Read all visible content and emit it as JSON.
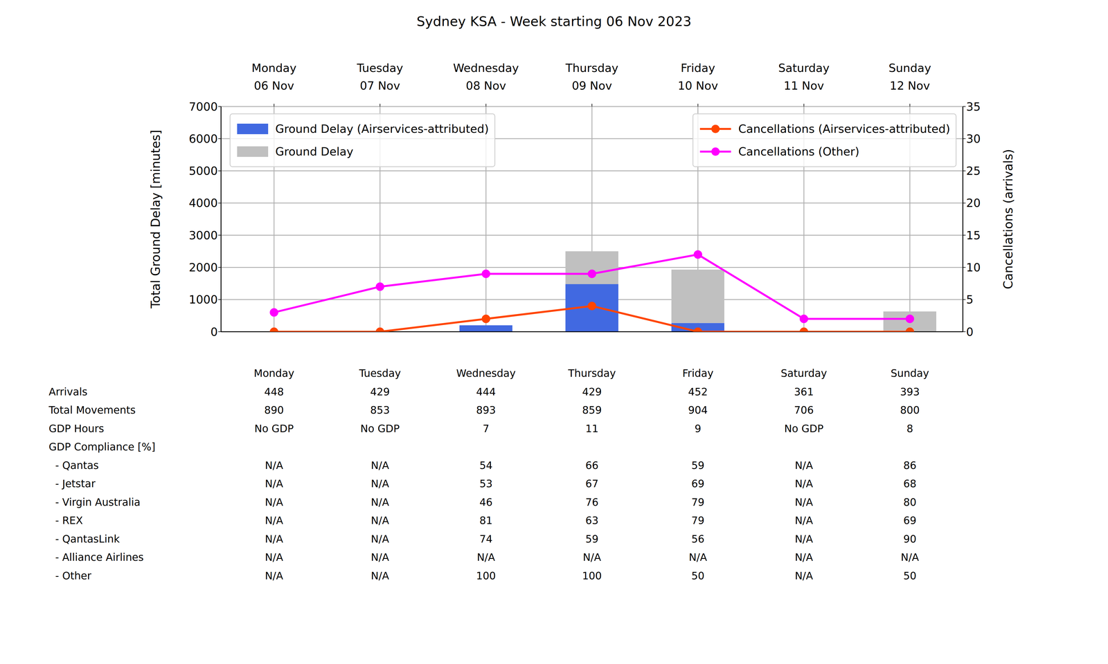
{
  "chart_data": {
    "type": "bar",
    "title": "Sydney KSA - Week starting 06 Nov 2023",
    "categories": [
      "Monday\n06 Nov",
      "Tuesday\n07 Nov",
      "Wednesday\n08 Nov",
      "Thursday\n09 Nov",
      "Friday\n10 Nov",
      "Saturday\n11 Nov",
      "Sunday\n12 Nov"
    ],
    "y_label": "Total Ground Delay [minutes]",
    "y2_label": "Cancellations (arrivals)",
    "ylim": [
      0,
      7000
    ],
    "yticks": [
      0,
      1000,
      2000,
      3000,
      4000,
      5000,
      6000,
      7000
    ],
    "y2lim": [
      0,
      35
    ],
    "y2ticks": [
      0,
      5,
      10,
      15,
      20,
      25,
      30,
      35
    ],
    "grid": true,
    "stacked": true,
    "series": [
      {
        "name": "Ground Delay (Airservices-attributed)",
        "type": "bar",
        "color": "#4169e1",
        "legend": "upper left",
        "values": [
          0,
          0,
          200,
          1480,
          270,
          0,
          0
        ]
      },
      {
        "name": "Ground Delay",
        "type": "bar",
        "color": "#c0c0c0",
        "legend": "upper left",
        "values": [
          0,
          0,
          0,
          1020,
          1660,
          0,
          630
        ]
      },
      {
        "name": "Cancellations (Airservices-attributed)",
        "type": "line",
        "axis": "y2",
        "color": "#ff4500",
        "marker": "circle",
        "line_style": "solid",
        "legend": "upper right",
        "values": [
          0,
          0,
          2,
          4,
          0,
          0,
          0
        ]
      },
      {
        "name": "Cancellations (Other)",
        "type": "line",
        "axis": "y2",
        "color": "#ff00ff",
        "marker": "circle",
        "line_style": "solid",
        "legend": "upper right",
        "values": [
          3,
          7,
          9,
          9,
          12,
          2,
          2
        ]
      }
    ]
  },
  "table": {
    "columns": [
      "Monday",
      "Tuesday",
      "Wednesday",
      "Thursday",
      "Friday",
      "Saturday",
      "Sunday"
    ],
    "rows": [
      {
        "label": "Arrivals",
        "values": [
          448,
          429,
          444,
          429,
          452,
          361,
          393
        ]
      },
      {
        "label": "Total Movements",
        "values": [
          890,
          853,
          893,
          859,
          904,
          706,
          800
        ]
      },
      {
        "label": "GDP Hours",
        "values": [
          "No GDP",
          "No GDP",
          7,
          11,
          9,
          "No GDP",
          8
        ]
      },
      {
        "label": "GDP Compliance [%]"
      },
      {
        "label": "  - Qantas",
        "values": [
          "N/A",
          "N/A",
          54,
          66,
          59,
          "N/A",
          86
        ]
      },
      {
        "label": "  - Jetstar",
        "values": [
          "N/A",
          "N/A",
          53,
          67,
          69,
          "N/A",
          68
        ]
      },
      {
        "label": "  - Virgin Australia",
        "values": [
          "N/A",
          "N/A",
          46,
          76,
          79,
          "N/A",
          80
        ]
      },
      {
        "label": "  - REX",
        "values": [
          "N/A",
          "N/A",
          81,
          63,
          79,
          "N/A",
          69
        ]
      },
      {
        "label": "  - QantasLink",
        "values": [
          "N/A",
          "N/A",
          74,
          59,
          56,
          "N/A",
          90
        ]
      },
      {
        "label": "  - Alliance Airlines",
        "values": [
          "N/A",
          "N/A",
          "N/A",
          "N/A",
          "N/A",
          "N/A",
          "N/A"
        ]
      },
      {
        "label": "  - Other",
        "values": [
          "N/A",
          "N/A",
          100,
          100,
          50,
          "N/A",
          50
        ]
      }
    ]
  }
}
